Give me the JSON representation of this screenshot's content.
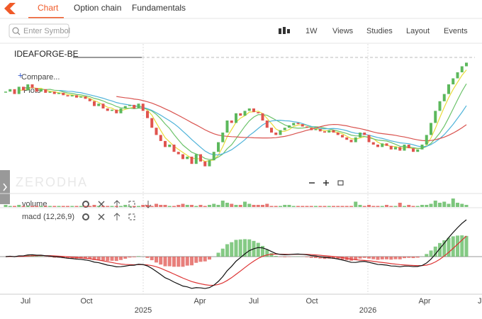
{
  "header": {
    "tabs": [
      "Chart",
      "Option chain",
      "Fundamentals"
    ]
  },
  "toolbar": {
    "search_placeholder": "Enter Symbol",
    "interval": "1W",
    "menus": [
      "Views",
      "Studies",
      "Layout",
      "Events"
    ]
  },
  "chart": {
    "symbol": "IDEAFORGE-BE",
    "legend": [
      "Compare...",
      "Plots"
    ],
    "watermark": "ZERODHA",
    "up_color": "#5cb85c",
    "down_color": "#e0544f",
    "closes": [
      74,
      76,
      72,
      78,
      75,
      80,
      77,
      74,
      76,
      73,
      74,
      72,
      73,
      71,
      70,
      71,
      69,
      70,
      68,
      66,
      62,
      64,
      60,
      58,
      59,
      56,
      60,
      62,
      63,
      60,
      64,
      58,
      52,
      44,
      38,
      33,
      28,
      30,
      24,
      22,
      18,
      20,
      14,
      22,
      16,
      12,
      17,
      24,
      32,
      40,
      50,
      48,
      56,
      54,
      58,
      60,
      57,
      56,
      50,
      44,
      40,
      38,
      42,
      44,
      46,
      48,
      47,
      45,
      44,
      42,
      43,
      41,
      40,
      42,
      40,
      38,
      36,
      34,
      32,
      36,
      40,
      38,
      32,
      30,
      28,
      31,
      29,
      26,
      28,
      25,
      30,
      27,
      24,
      26,
      30,
      38,
      48,
      58,
      66,
      72,
      80,
      85,
      90,
      95,
      98
    ],
    "volume_label": "volume",
    "volume": [
      2,
      1,
      1,
      2,
      1,
      1,
      1,
      1,
      1,
      1,
      1,
      1,
      1,
      1,
      1,
      1,
      1,
      1,
      1,
      1,
      2,
      1,
      1,
      1,
      1,
      1,
      1,
      2,
      1,
      1,
      1,
      2,
      2,
      1,
      3,
      2,
      2,
      1,
      1,
      2,
      3,
      2,
      2,
      1,
      2,
      1,
      2,
      3,
      2,
      6,
      4,
      3,
      2,
      2,
      5,
      3,
      2,
      2,
      2,
      3,
      1,
      1,
      1,
      2,
      2,
      1,
      1,
      1,
      1,
      1,
      1,
      1,
      1,
      1,
      1,
      1,
      1,
      1,
      1,
      5,
      2,
      1,
      2,
      1,
      1,
      1,
      2,
      1,
      1,
      4,
      1,
      2,
      1,
      1,
      2,
      2,
      3,
      6,
      4,
      5,
      3,
      8,
      4,
      3,
      2
    ],
    "macd_label": "macd (12,26,9)",
    "months": [
      "Jul",
      "Oct",
      "Apr",
      "Jul",
      "Oct",
      "Apr",
      "Ju"
    ],
    "years": [
      "2025",
      "2026"
    ]
  }
}
